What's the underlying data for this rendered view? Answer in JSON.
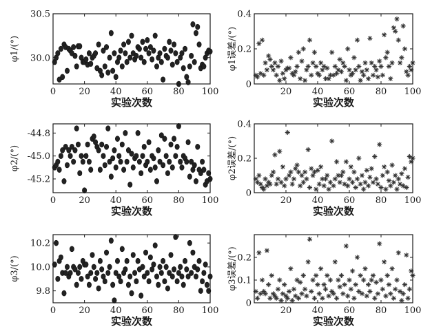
{
  "chart_data": [
    {
      "type": "scatter",
      "marker": "dot",
      "xlabel": "实验次数",
      "ylabel": "φ1/(°)",
      "xlim": [
        0,
        100
      ],
      "ylim": [
        29.7,
        30.5
      ],
      "xticks": [
        0,
        20,
        40,
        60,
        80,
        100
      ],
      "yticks": [
        30.0,
        30.5
      ],
      "ytick_labels": [
        "30.0",
        "30.5"
      ],
      "x": [
        1,
        2,
        3,
        4,
        5,
        6,
        7,
        8,
        9,
        10,
        11,
        12,
        13,
        14,
        15,
        16,
        17,
        18,
        19,
        20,
        21,
        22,
        23,
        24,
        25,
        26,
        27,
        28,
        29,
        30,
        31,
        32,
        33,
        34,
        35,
        36,
        37,
        38,
        39,
        40,
        41,
        42,
        43,
        44,
        45,
        46,
        47,
        48,
        49,
        50,
        51,
        52,
        53,
        54,
        55,
        56,
        57,
        58,
        59,
        60,
        61,
        62,
        63,
        64,
        65,
        66,
        67,
        68,
        69,
        70,
        71,
        72,
        73,
        74,
        75,
        76,
        77,
        78,
        79,
        80,
        81,
        82,
        83,
        84,
        85,
        86,
        87,
        88,
        89,
        90,
        91,
        92,
        93,
        94,
        95,
        96,
        97,
        98,
        99,
        100
      ],
      "y": [
        29.95,
        30.0,
        30.05,
        29.75,
        30.1,
        29.78,
        30.15,
        30.12,
        29.85,
        30.1,
        30.08,
        30.05,
        30.12,
        30.02,
        29.9,
        30.13,
        30.13,
        30.0,
        29.95,
        29.95,
        29.98,
        29.92,
        30.05,
        29.93,
        30.0,
        30.02,
        30.05,
        29.88,
        30.15,
        29.85,
        29.8,
        30.08,
        29.9,
        30.12,
        29.83,
        30.0,
        30.28,
        29.85,
        30.05,
        29.78,
        29.95,
        30.0,
        30.08,
        29.9,
        30.15,
        30.05,
        29.95,
        30.18,
        30.0,
        30.25,
        30.05,
        29.98,
        30.02,
        30.12,
        30.1,
        30.0,
        30.18,
        29.95,
        30.1,
        30.2,
        30.05,
        30.12,
        29.98,
        30.08,
        30.25,
        29.9,
        30.0,
        30.05,
        29.95,
        29.75,
        30.1,
        30.02,
        30.0,
        30.18,
        30.08,
        29.92,
        30.15,
        30.05,
        29.95,
        29.7,
        30.0,
        30.05,
        29.88,
        30.1,
        29.78,
        29.72,
        29.9,
        30.02,
        30.38,
        29.95,
        30.28,
        30.35,
        30.15,
        29.88,
        29.92,
        29.9,
        30.0,
        30.05,
        30.08,
        30.07
      ]
    },
    {
      "type": "scatter",
      "marker": "star",
      "xlabel": "实验次数",
      "ylabel": "φ1误差/(°)",
      "xlim": [
        0,
        100
      ],
      "ylim": [
        0,
        0.4
      ],
      "xticks": [
        20,
        40,
        60,
        80,
        100
      ],
      "yticks": [
        0,
        0.2,
        0.4
      ],
      "ytick_labels": [
        "0",
        "0.2",
        "0.4"
      ],
      "x": [
        1,
        2,
        3,
        4,
        5,
        6,
        7,
        8,
        9,
        10,
        11,
        12,
        13,
        14,
        15,
        16,
        17,
        18,
        19,
        20,
        21,
        22,
        23,
        24,
        25,
        26,
        27,
        28,
        29,
        30,
        31,
        32,
        33,
        34,
        35,
        36,
        37,
        38,
        39,
        40,
        41,
        42,
        43,
        44,
        45,
        46,
        47,
        48,
        49,
        50,
        51,
        52,
        53,
        54,
        55,
        56,
        57,
        58,
        59,
        60,
        61,
        62,
        63,
        64,
        65,
        66,
        67,
        68,
        69,
        70,
        71,
        72,
        73,
        74,
        75,
        76,
        77,
        78,
        79,
        80,
        81,
        82,
        83,
        84,
        85,
        86,
        87,
        88,
        89,
        90,
        91,
        92,
        93,
        94,
        95,
        96,
        97,
        98,
        99,
        100
      ],
      "y": [
        0.05,
        0.04,
        0.23,
        0.06,
        0.25,
        0.05,
        0.12,
        0.08,
        0.16,
        0.14,
        0.1,
        0.08,
        0.12,
        0.05,
        0.1,
        0.02,
        0.13,
        0.06,
        0.03,
        0.08,
        0.09,
        0.09,
        0.15,
        0.06,
        0.05,
        0.07,
        0.1,
        0.18,
        0.03,
        0.13,
        0.2,
        0.02,
        0.08,
        0.1,
        0.25,
        0.05,
        0.12,
        0.18,
        0.1,
        0.06,
        0.05,
        0.12,
        0.08,
        0.1,
        0.03,
        0.09,
        0.03,
        0.05,
        0.18,
        0.05,
        0.1,
        0.06,
        0.08,
        0.14,
        0.07,
        0.12,
        0.1,
        0.02,
        0.2,
        0.08,
        0.05,
        0.06,
        0.15,
        0.08,
        0.25,
        0.1,
        0.02,
        0.07,
        0.05,
        0.12,
        0.08,
        0.03,
        0.26,
        0.12,
        0.05,
        0.1,
        0.08,
        0.04,
        0.13,
        0.1,
        0.05,
        0.28,
        0.15,
        0.18,
        0.1,
        0.03,
        0.12,
        0.32,
        0.3,
        0.37,
        0.25,
        0.12,
        0.15,
        0.33,
        0.2,
        0.07,
        0.05,
        0.1,
        0.08,
        0.12
      ]
    },
    {
      "type": "scatter",
      "marker": "dot",
      "xlabel": "实验次数",
      "ylabel": "φ2/(°)",
      "xlim": [
        0,
        100
      ],
      "ylim": [
        -45.32,
        -44.72
      ],
      "xticks": [
        0,
        20,
        40,
        60,
        80,
        100
      ],
      "yticks": [
        -44.8,
        -45.0,
        -45.2
      ],
      "ytick_labels": [
        "-44.8",
        "-45.0",
        "-45.2"
      ],
      "x": [
        1,
        2,
        3,
        4,
        5,
        6,
        7,
        8,
        9,
        10,
        11,
        12,
        13,
        14,
        15,
        16,
        17,
        18,
        19,
        20,
        21,
        22,
        23,
        24,
        25,
        26,
        27,
        28,
        29,
        30,
        31,
        32,
        33,
        34,
        35,
        36,
        37,
        38,
        39,
        40,
        41,
        42,
        43,
        44,
        45,
        46,
        47,
        48,
        49,
        50,
        51,
        52,
        53,
        54,
        55,
        56,
        57,
        58,
        59,
        60,
        61,
        62,
        63,
        64,
        65,
        66,
        67,
        68,
        69,
        70,
        71,
        72,
        73,
        74,
        75,
        76,
        77,
        78,
        79,
        80,
        81,
        82,
        83,
        84,
        85,
        86,
        87,
        88,
        89,
        90,
        91,
        92,
        93,
        94,
        95,
        96,
        97,
        98,
        99,
        100
      ],
      "y": [
        -45.1,
        -45.08,
        -45.05,
        -45.12,
        -45.0,
        -44.95,
        -45.22,
        -44.92,
        -45.08,
        -44.95,
        -45.0,
        -44.92,
        -45.05,
        -44.95,
        -44.76,
        -44.9,
        -45.15,
        -45.0,
        -45.05,
        -45.3,
        -45.0,
        -44.9,
        -45.05,
        -45.12,
        -44.85,
        -44.83,
        -44.88,
        -44.92,
        -44.95,
        -45.12,
        -44.9,
        -45.0,
        -45.08,
        -44.92,
        -44.76,
        -45.05,
        -45.18,
        -45.02,
        -44.95,
        -45.1,
        -44.85,
        -45.0,
        -45.05,
        -44.9,
        -45.12,
        -44.8,
        -45.05,
        -44.95,
        -45.25,
        -44.98,
        -45.1,
        -45.02,
        -45.0,
        -44.8,
        -45.05,
        -45.15,
        -45.0,
        -44.92,
        -45.08,
        -45.05,
        -44.88,
        -45.12,
        -45.0,
        -45.02,
        -45.1,
        -45.22,
        -44.95,
        -45.05,
        -44.82,
        -45.08,
        -44.85,
        -45.0,
        -45.15,
        -45.05,
        -44.9,
        -45.1,
        -44.85,
        -45.0,
        -44.92,
        -44.74,
        -45.05,
        -45.1,
        -45.0,
        -45.02,
        -45.05,
        -44.88,
        -45.18,
        -45.05,
        -45.12,
        -45.08,
        -45.22,
        -44.92,
        -45.12,
        -45.15,
        -45.05,
        -45.12,
        -45.25,
        -45.22,
        -45.15,
        -45.2
      ]
    },
    {
      "type": "scatter",
      "marker": "star",
      "xlabel": "实验次数",
      "ylabel": "φ2误差/(°)",
      "xlim": [
        0,
        100
      ],
      "ylim": [
        0,
        0.4
      ],
      "xticks": [
        20,
        40,
        60,
        80,
        100
      ],
      "yticks": [
        0,
        0.2,
        0.4
      ],
      "ytick_labels": [
        "0",
        "0.2",
        "0.4"
      ],
      "x": [
        1,
        2,
        3,
        4,
        5,
        6,
        7,
        8,
        9,
        10,
        11,
        12,
        13,
        14,
        15,
        16,
        17,
        18,
        19,
        20,
        21,
        22,
        23,
        24,
        25,
        26,
        27,
        28,
        29,
        30,
        31,
        32,
        33,
        34,
        35,
        36,
        37,
        38,
        39,
        40,
        41,
        42,
        43,
        44,
        45,
        46,
        47,
        48,
        49,
        50,
        51,
        52,
        53,
        54,
        55,
        56,
        57,
        58,
        59,
        60,
        61,
        62,
        63,
        64,
        65,
        66,
        67,
        68,
        69,
        70,
        71,
        72,
        73,
        74,
        75,
        76,
        77,
        78,
        79,
        80,
        81,
        82,
        83,
        84,
        85,
        86,
        87,
        88,
        89,
        90,
        91,
        92,
        93,
        94,
        95,
        96,
        97,
        98,
        99,
        100
      ],
      "y": [
        0.08,
        0.06,
        0.1,
        0.05,
        0.03,
        0.02,
        0.08,
        0.04,
        0.06,
        0.05,
        0.1,
        0.12,
        0.22,
        0.05,
        0.08,
        0.24,
        0.06,
        0.15,
        0.04,
        0.08,
        0.35,
        0.1,
        0.12,
        0.05,
        0.08,
        0.14,
        0.16,
        0.12,
        0.04,
        0.1,
        0.06,
        0.12,
        0.08,
        0.25,
        0.03,
        0.14,
        0.1,
        0.12,
        0.02,
        0.13,
        0.05,
        0.15,
        0.08,
        0.04,
        0.08,
        0.1,
        0.02,
        0.06,
        0.3,
        0.04,
        0.08,
        0.18,
        0.1,
        0.06,
        0.1,
        0.12,
        0.05,
        0.18,
        0.04,
        0.08,
        0.15,
        0.06,
        0.12,
        0.03,
        0.08,
        0.2,
        0.05,
        0.1,
        0.02,
        0.06,
        0.13,
        0.04,
        0.09,
        0.14,
        0.06,
        0.21,
        0.08,
        0.05,
        0.28,
        0.03,
        0.1,
        0.15,
        0.02,
        0.12,
        0.07,
        0.04,
        0.16,
        0.06,
        0.1,
        0.02,
        0.08,
        0.05,
        0.11,
        0.04,
        0.14,
        0.03,
        0.09,
        0.21,
        0.18,
        0.2
      ]
    },
    {
      "type": "scatter",
      "marker": "dot",
      "xlabel": "实验次数",
      "ylabel": "φ3/(°)",
      "xlim": [
        0,
        100
      ],
      "ylim": [
        9.7,
        10.27
      ],
      "xticks": [
        0,
        20,
        40,
        60,
        80,
        100
      ],
      "yticks": [
        10.2,
        10.0,
        9.8
      ],
      "ytick_labels": [
        "10.2",
        "10.0",
        "9.8"
      ],
      "x": [
        1,
        2,
        3,
        4,
        5,
        6,
        7,
        8,
        9,
        10,
        11,
        12,
        13,
        14,
        15,
        16,
        17,
        18,
        19,
        20,
        21,
        22,
        23,
        24,
        25,
        26,
        27,
        28,
        29,
        30,
        31,
        32,
        33,
        34,
        35,
        36,
        37,
        38,
        39,
        40,
        41,
        42,
        43,
        44,
        45,
        46,
        47,
        48,
        49,
        50,
        51,
        52,
        53,
        54,
        55,
        56,
        57,
        58,
        59,
        60,
        61,
        62,
        63,
        64,
        65,
        66,
        67,
        68,
        69,
        70,
        71,
        72,
        73,
        74,
        75,
        76,
        77,
        78,
        79,
        80,
        81,
        82,
        83,
        84,
        85,
        86,
        87,
        88,
        89,
        90,
        91,
        92,
        93,
        94,
        95,
        96,
        97,
        98,
        99,
        100
      ],
      "y": [
        10.02,
        10.2,
        9.9,
        10.05,
        10.08,
        9.95,
        9.78,
        9.95,
        10.0,
        9.92,
        9.95,
        10.15,
        10.0,
        9.98,
        9.85,
        9.95,
        10.0,
        9.9,
        10.05,
        10.02,
        10.02,
        9.92,
        9.85,
        9.95,
        10.1,
        10.0,
        9.9,
        9.95,
        9.82,
        10.05,
        9.98,
        9.92,
        9.88,
        10.12,
        9.95,
        10.0,
        10.22,
        9.85,
        9.72,
        9.95,
        10.05,
        9.92,
        9.88,
        10.15,
        9.95,
        9.98,
        10.05,
        9.85,
        9.92,
        9.78,
        10.1,
        9.95,
        9.88,
        10.05,
        9.98,
        9.76,
        10.0,
        9.92,
        10.12,
        9.95,
        9.88,
        10.08,
        9.98,
        10.02,
        10.18,
        9.92,
        9.85,
        10.0,
        9.95,
        10.05,
        9.88,
        10.0,
        9.82,
        9.95,
        10.1,
        9.92,
        9.98,
        10.25,
        9.88,
        9.95,
        10.0,
        9.92,
        9.85,
        10.05,
        9.98,
        9.92,
        10.2,
        9.95,
        10.12,
        10.0,
        9.92,
        9.98,
        10.05,
        9.8,
        9.88,
        9.95,
        10.02,
        9.85,
        9.8,
        9.92
      ]
    },
    {
      "type": "scatter",
      "marker": "star",
      "xlabel": "实验次数",
      "ylabel": "φ3误差/(°)",
      "xlim": [
        0,
        100
      ],
      "ylim": [
        0,
        0.3
      ],
      "xticks": [
        20,
        40,
        60,
        80,
        100
      ],
      "yticks": [
        0,
        0.1,
        0.2
      ],
      "ytick_labels": [
        "0",
        "0.1",
        "0.2"
      ],
      "x": [
        1,
        2,
        3,
        4,
        5,
        6,
        7,
        8,
        9,
        10,
        11,
        12,
        13,
        14,
        15,
        16,
        17,
        18,
        19,
        20,
        21,
        22,
        23,
        24,
        25,
        26,
        27,
        28,
        29,
        30,
        31,
        32,
        33,
        34,
        35,
        36,
        37,
        38,
        39,
        40,
        41,
        42,
        43,
        44,
        45,
        46,
        47,
        48,
        49,
        50,
        51,
        52,
        53,
        54,
        55,
        56,
        57,
        58,
        59,
        60,
        61,
        62,
        63,
        64,
        65,
        66,
        67,
        68,
        69,
        70,
        71,
        72,
        73,
        74,
        75,
        76,
        77,
        78,
        79,
        80,
        81,
        82,
        83,
        84,
        85,
        86,
        87,
        88,
        89,
        90,
        91,
        92,
        93,
        94,
        95,
        96,
        97,
        98,
        99,
        100
      ],
      "y": [
        0.05,
        0.02,
        0.22,
        0.04,
        0.1,
        0.05,
        0.04,
        0.23,
        0.08,
        0.02,
        0.12,
        0.04,
        0.03,
        0.02,
        0.06,
        0.1,
        0.01,
        0.04,
        0.08,
        0.03,
        0.02,
        0.05,
        0.15,
        0.01,
        0.06,
        0.03,
        0.1,
        0.02,
        0.09,
        0.04,
        0.12,
        0.06,
        0.03,
        0.18,
        0.28,
        0.05,
        0.1,
        0.02,
        0.12,
        0.08,
        0.04,
        0.15,
        0.02,
        0.08,
        0.06,
        0.12,
        0.03,
        0.1,
        0.05,
        0.04,
        0.18,
        0.02,
        0.1,
        0.07,
        0.12,
        0.04,
        0.08,
        0.25,
        0.03,
        0.1,
        0.06,
        0.14,
        0.02,
        0.08,
        0.2,
        0.05,
        0.12,
        0.04,
        0.1,
        0.15,
        0.03,
        0.08,
        0.05,
        0.1,
        0.12,
        0.02,
        0.09,
        0.04,
        0.26,
        0.1,
        0.06,
        0.18,
        0.03,
        0.12,
        0.08,
        0.04,
        0.15,
        0.02,
        0.06,
        0.1,
        0.22,
        0.05,
        0.01,
        0.04,
        0.08,
        0.21,
        0.02,
        0.06,
        0.14,
        0.12
      ]
    }
  ]
}
